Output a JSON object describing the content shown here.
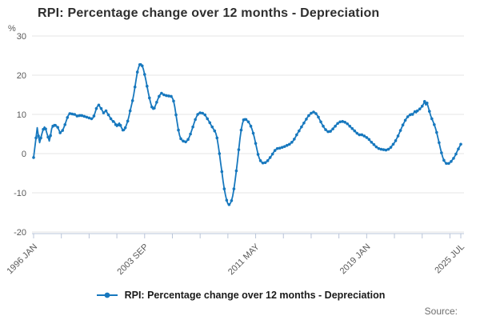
{
  "footer": {
    "source_label": "Source:"
  },
  "colors": {
    "line": "#1778be",
    "grid": "#e4e4e4",
    "axis": "#b9c4d8",
    "tick_text": "#595959",
    "title_text": "#2e2e2e"
  },
  "chart_data": {
    "type": "line",
    "title": "RPI: Percentage change over 12 months - Depreciation",
    "unit": "%",
    "xlabel": "",
    "ylabel": "%",
    "ylim": [
      -20,
      30
    ],
    "grid": "horizontal",
    "legend": {
      "position": "bottom",
      "label": "RPI: Percentage change over 12 months - Depreciation"
    },
    "x_start": "1996 JAN",
    "x_end": "2025 JUL",
    "frequency": "monthly",
    "y_ticks": [
      30,
      20,
      10,
      0,
      -10,
      -20
    ],
    "x_ticks": [
      {
        "m": 0,
        "label": "1996 JAN"
      },
      {
        "m": 23
      },
      {
        "m": 46
      },
      {
        "m": 69
      },
      {
        "m": 92,
        "label": "2003 SEP"
      },
      {
        "m": 115
      },
      {
        "m": 138
      },
      {
        "m": 161
      },
      {
        "m": 184,
        "label": "2011 MAY"
      },
      {
        "m": 207
      },
      {
        "m": 230
      },
      {
        "m": 253
      },
      {
        "m": 276,
        "label": "2019 JAN"
      },
      {
        "m": 299
      },
      {
        "m": 322
      },
      {
        "m": 345
      },
      {
        "m": 354,
        "label": "2025 JUL"
      }
    ],
    "values": [
      -1.0,
      1.5,
      4.0,
      6.6,
      4.5,
      2.8,
      4.0,
      5.2,
      6.2,
      6.8,
      6.3,
      5.2,
      4.2,
      3.2,
      4.6,
      6.4,
      7.0,
      7.4,
      7.2,
      7.0,
      6.7,
      6.0,
      5.3,
      5.6,
      5.9,
      6.6,
      7.4,
      8.3,
      9.2,
      9.9,
      10.2,
      10.3,
      10.1,
      9.9,
      10.0,
      9.8,
      9.6,
      9.5,
      9.7,
      9.9,
      9.7,
      9.6,
      9.5,
      9.4,
      9.3,
      9.2,
      9.1,
      9.0,
      8.9,
      9.0,
      9.6,
      10.5,
      11.5,
      12.1,
      12.4,
      11.9,
      11.5,
      10.9,
      10.4,
      10.7,
      10.9,
      10.4,
      9.9,
      9.4,
      8.9,
      8.5,
      8.2,
      8.1,
      7.4,
      6.9,
      7.3,
      7.8,
      7.2,
      6.5,
      6.0,
      5.9,
      6.6,
      7.4,
      8.3,
      9.5,
      10.9,
      12.2,
      13.5,
      15.1,
      17.0,
      19.0,
      20.8,
      22.0,
      22.7,
      22.9,
      22.4,
      21.5,
      20.2,
      18.8,
      17.2,
      15.6,
      14.2,
      12.9,
      11.9,
      11.3,
      11.6,
      12.3,
      13.1,
      13.9,
      14.6,
      15.1,
      15.4,
      15.2,
      15.0,
      14.9,
      14.8,
      14.8,
      14.7,
      14.7,
      14.6,
      14.2,
      13.4,
      11.9,
      9.9,
      7.9,
      6.0,
      4.6,
      3.8,
      3.4,
      3.2,
      3.1,
      3.0,
      3.2,
      3.6,
      4.2,
      5.0,
      5.9,
      6.8,
      7.8,
      8.7,
      9.4,
      10.0,
      10.3,
      10.4,
      10.4,
      10.3,
      10.1,
      9.9,
      9.4,
      8.9,
      8.4,
      7.9,
      7.3,
      6.8,
      6.3,
      5.8,
      5.2,
      4.0,
      2.1,
      0.0,
      -2.4,
      -4.6,
      -7.0,
      -9.0,
      -10.6,
      -11.9,
      -12.8,
      -13.0,
      -12.7,
      -12.0,
      -10.8,
      -9.0,
      -6.8,
      -4.4,
      -1.8,
      1.0,
      3.8,
      6.0,
      7.6,
      8.6,
      8.9,
      8.7,
      8.4,
      8.1,
      7.6,
      7.0,
      6.2,
      5.2,
      4.0,
      2.6,
      1.2,
      -0.2,
      -1.2,
      -1.8,
      -2.2,
      -2.4,
      -2.4,
      -2.3,
      -2.1,
      -1.8,
      -1.4,
      -1.0,
      -0.6,
      -0.1,
      0.4,
      0.8,
      1.1,
      1.3,
      1.4,
      1.4,
      1.5,
      1.6,
      1.7,
      1.8,
      2.0,
      2.1,
      2.2,
      2.4,
      2.6,
      2.9,
      3.2,
      3.7,
      4.2,
      4.8,
      5.3,
      5.8,
      6.3,
      6.8,
      7.3,
      7.8,
      8.3,
      8.8,
      9.3,
      9.7,
      10.0,
      10.3,
      10.5,
      10.6,
      10.5,
      10.2,
      9.8,
      9.3,
      8.7,
      8.1,
      7.5,
      7.0,
      6.5,
      6.1,
      5.8,
      5.6,
      5.5,
      5.7,
      6.0,
      6.3,
      6.7,
      7.0,
      7.4,
      7.7,
      7.9,
      8.1,
      8.2,
      8.2,
      8.2,
      8.0,
      7.8,
      7.6,
      7.3,
      7.0,
      6.7,
      6.4,
      6.1,
      5.8,
      5.5,
      5.2,
      4.9,
      4.8,
      4.9,
      4.8,
      4.6,
      4.5,
      4.3,
      4.1,
      3.9,
      3.6,
      3.2,
      2.9,
      2.6,
      2.3,
      2.0,
      1.7,
      1.5,
      1.3,
      1.2,
      1.1,
      1.0,
      1.0,
      0.9,
      0.9,
      1.0,
      1.1,
      1.3,
      1.6,
      2.0,
      2.4,
      2.8,
      3.3,
      3.9,
      4.5,
      5.2,
      5.9,
      6.6,
      7.3,
      7.9,
      8.5,
      9.0,
      9.4,
      9.7,
      9.9,
      10.2,
      10.0,
      10.4,
      10.7,
      10.4,
      10.9,
      11.1,
      11.4,
      11.7,
      12.1,
      12.6,
      13.3,
      12.4,
      12.9,
      11.9,
      10.8,
      9.7,
      8.9,
      8.2,
      7.4,
      6.5,
      5.4,
      4.1,
      2.8,
      1.4,
      0.2,
      -0.9,
      -1.7,
      -2.2,
      -2.5,
      -2.6,
      -2.5,
      -2.3,
      -2.0,
      -1.6,
      -1.2,
      -0.7,
      -0.1,
      0.6,
      1.2,
      1.8,
      2.4
    ]
  }
}
